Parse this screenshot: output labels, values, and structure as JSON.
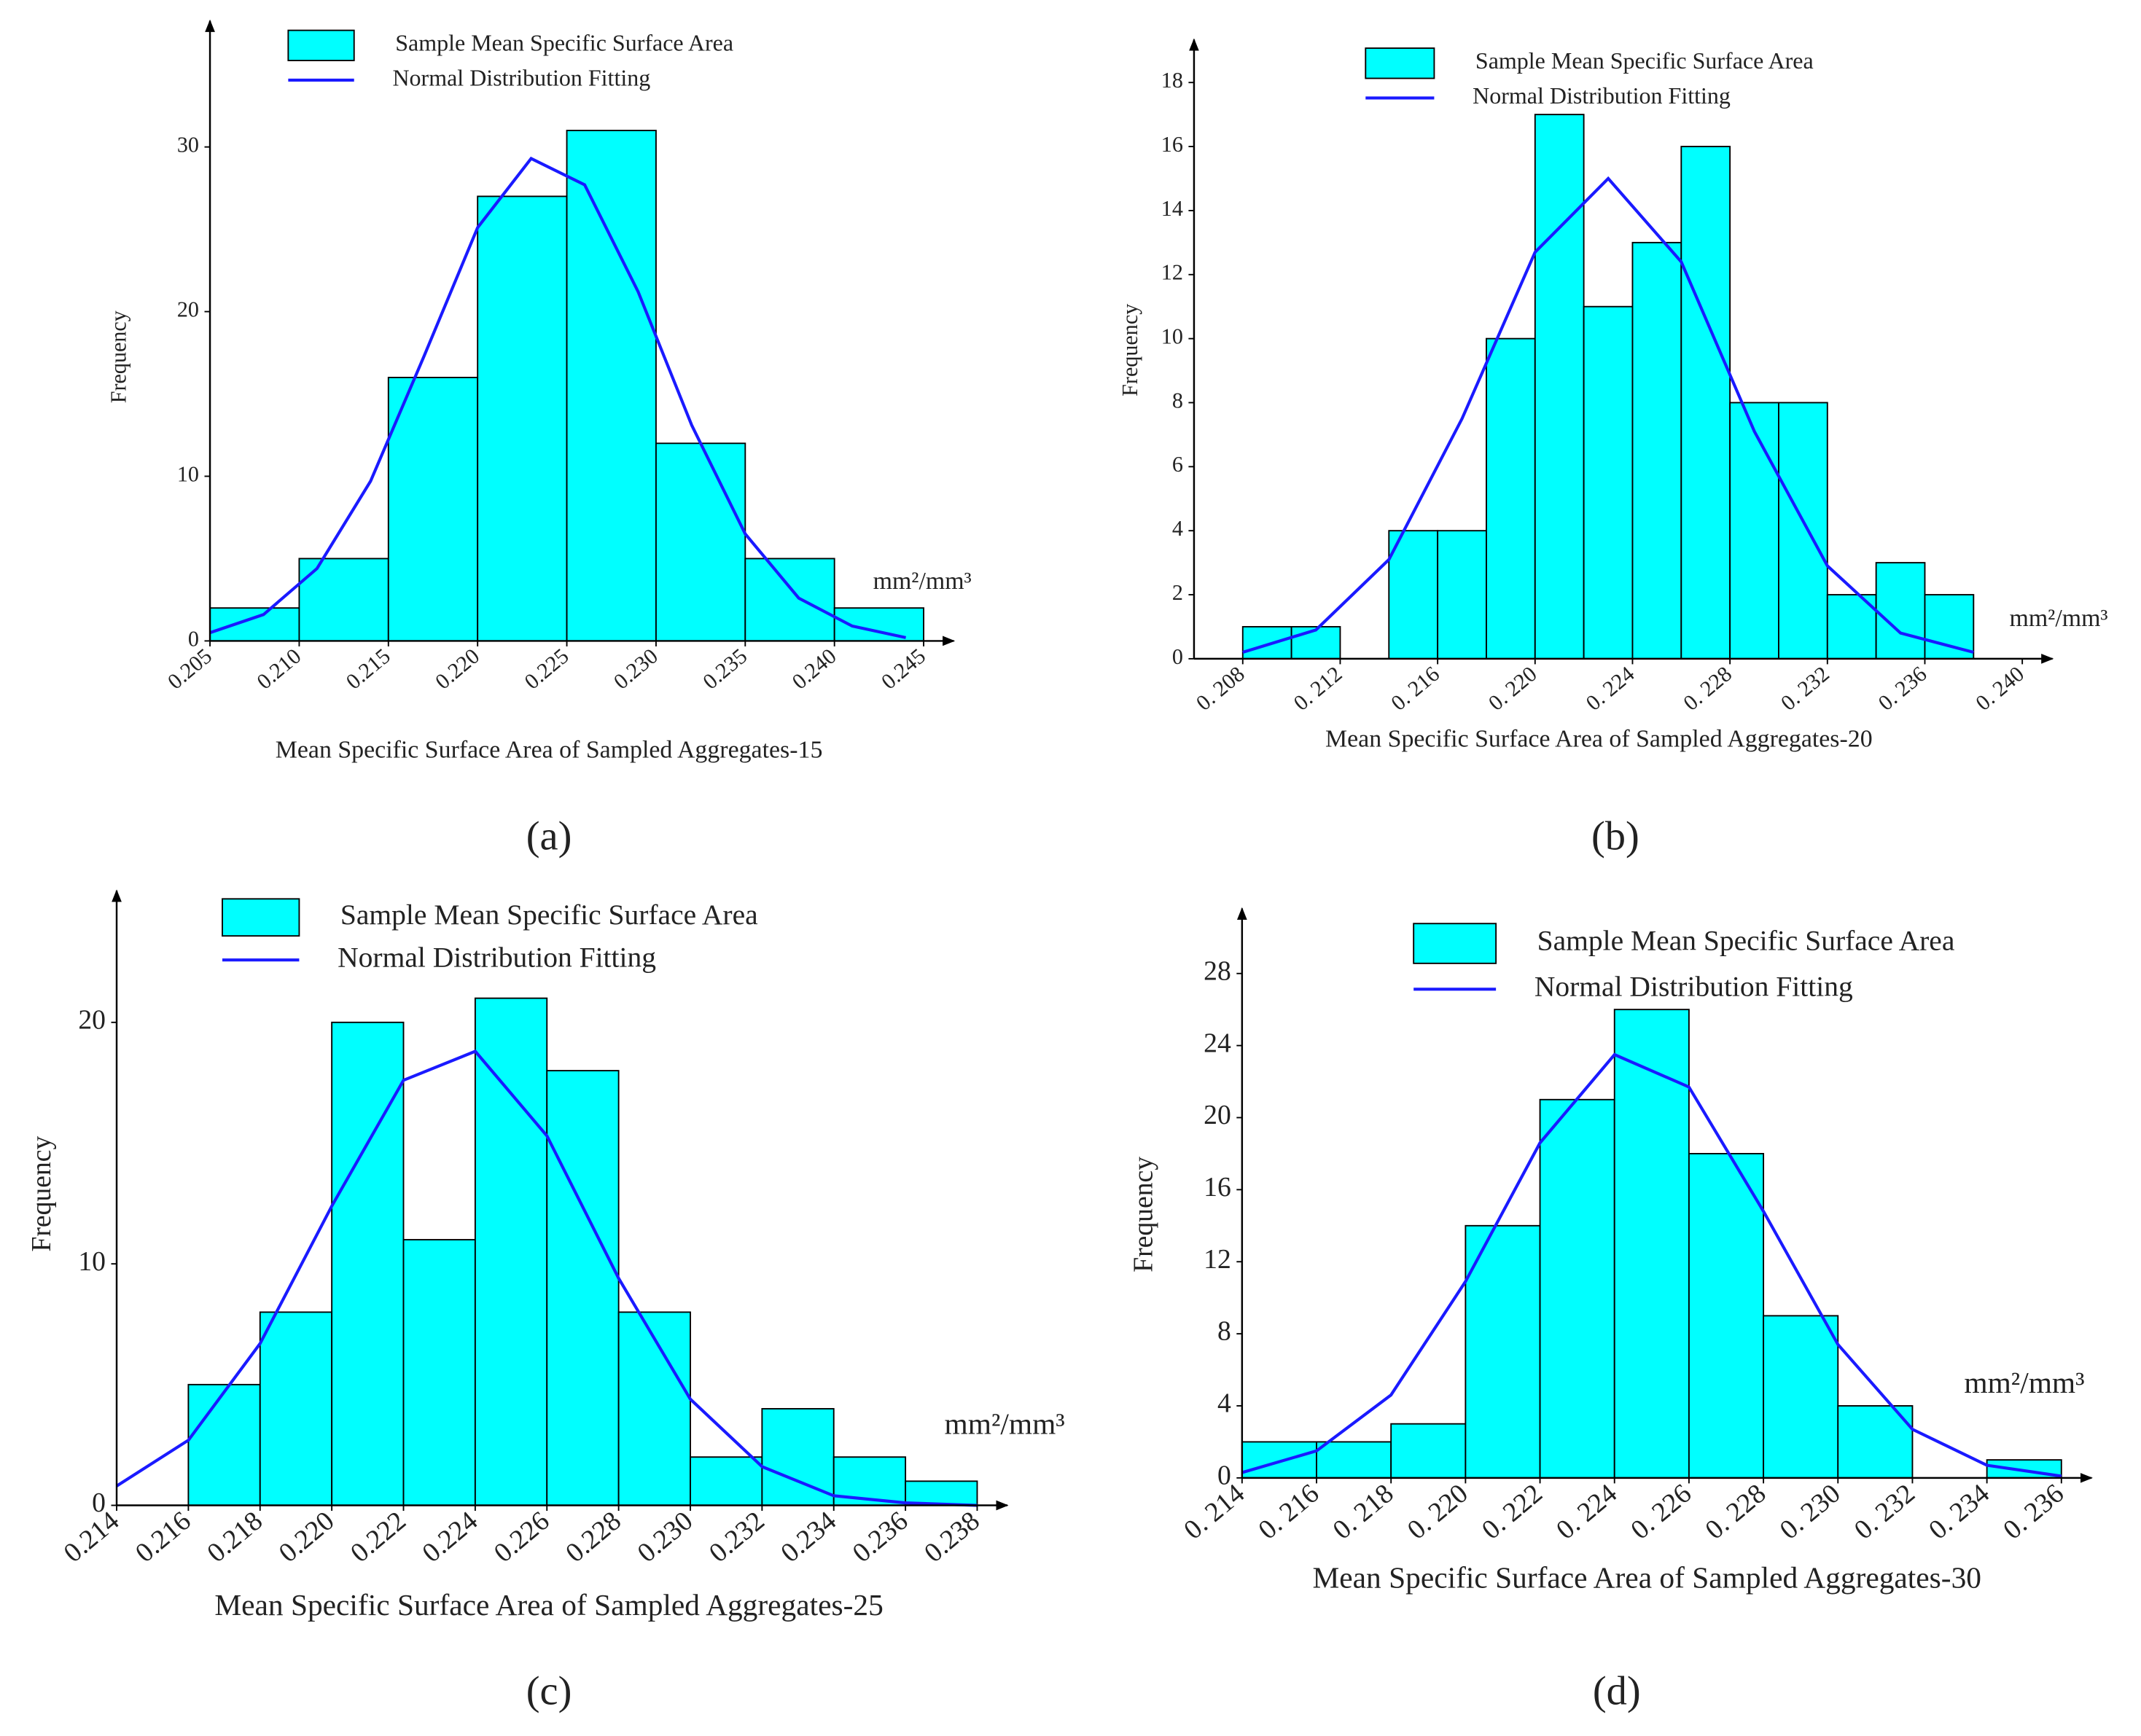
{
  "chart_data": [
    {
      "type": "histogram",
      "panel_label": "(a)",
      "xlabel": "Mean Specific Surface Area of Sampled Aggregates-15",
      "ylabel": "Frequency",
      "unit_label": "mm²/mm³",
      "bins": [
        0.205,
        0.21,
        0.215,
        0.22,
        0.225,
        0.23,
        0.235,
        0.24,
        0.245
      ],
      "series": [
        {
          "name": "Sample Mean Specific Surface Area",
          "color": "#00ffff",
          "values": [
            2,
            5,
            16,
            27,
            31,
            12,
            5,
            2
          ]
        },
        {
          "name": "Normal Distribution Fitting",
          "color": "#1a1aff",
          "x": [
            0.205,
            0.208,
            0.211,
            0.214,
            0.217,
            0.22,
            0.223,
            0.226,
            0.229,
            0.232,
            0.235,
            0.238,
            0.241,
            0.244
          ],
          "values": [
            0.5,
            1.6,
            4.4,
            9.7,
            17.3,
            25.1,
            29.3,
            27.7,
            21.2,
            13.1,
            6.5,
            2.6,
            0.9,
            0.2
          ]
        }
      ],
      "xlim": [
        0.205,
        0.245
      ],
      "ylim": [
        0,
        37
      ],
      "xticks": [
        {
          "value": 0.205,
          "label": "0.205"
        },
        {
          "value": 0.21,
          "label": "0.210"
        },
        {
          "value": 0.215,
          "label": "0.215"
        },
        {
          "value": 0.22,
          "label": "0.220"
        },
        {
          "value": 0.225,
          "label": "0.225"
        },
        {
          "value": 0.23,
          "label": "0.230"
        },
        {
          "value": 0.235,
          "label": "0.235"
        },
        {
          "value": 0.24,
          "label": "0.240"
        },
        {
          "value": 0.245,
          "label": "0.245"
        }
      ],
      "yticks": [
        0,
        10,
        20,
        30
      ]
    },
    {
      "type": "histogram",
      "panel_label": "(b)",
      "xlabel": "Mean Specific Surface Area of Sampled Aggregates-20",
      "ylabel": "Frequency",
      "unit_label": "mm²/mm³",
      "bins": [
        0.208,
        0.21,
        0.212,
        0.214,
        0.216,
        0.218,
        0.22,
        0.222,
        0.224,
        0.226,
        0.228,
        0.23,
        0.232,
        0.234,
        0.236,
        0.238
      ],
      "series": [
        {
          "name": "Sample Mean Specific Surface Area",
          "color": "#00ffff",
          "values": [
            1,
            1,
            0,
            4,
            4,
            10,
            17,
            11,
            13,
            16,
            8,
            8,
            2,
            3,
            2
          ]
        },
        {
          "name": "Normal Distribution Fitting",
          "color": "#1a1aff",
          "x": [
            0.208,
            0.211,
            0.214,
            0.217,
            0.22,
            0.223,
            0.226,
            0.229,
            0.232,
            0.235,
            0.238
          ],
          "values": [
            0.2,
            0.9,
            3.1,
            7.5,
            12.7,
            15,
            12.4,
            7.1,
            2.9,
            0.8,
            0.2
          ]
        }
      ],
      "xlim": [
        0.206,
        0.24
      ],
      "ylim": [
        0,
        19
      ],
      "xticks": [
        {
          "value": 0.208,
          "label": "0. 208"
        },
        {
          "value": 0.212,
          "label": "0. 212"
        },
        {
          "value": 0.216,
          "label": "0. 216"
        },
        {
          "value": 0.22,
          "label": "0. 220"
        },
        {
          "value": 0.224,
          "label": "0. 224"
        },
        {
          "value": 0.228,
          "label": "0. 228"
        },
        {
          "value": 0.232,
          "label": "0. 232"
        },
        {
          "value": 0.236,
          "label": "0. 236"
        },
        {
          "value": 0.24,
          "label": "0. 240"
        }
      ],
      "yticks": [
        0,
        2,
        4,
        6,
        8,
        10,
        12,
        14,
        16,
        18
      ]
    },
    {
      "type": "histogram",
      "panel_label": "(c)",
      "xlabel": "Mean Specific Surface Area of Sampled Aggregates-25",
      "ylabel": "Frequency",
      "unit_label": "mm²/mm³",
      "bins": [
        0.216,
        0.218,
        0.22,
        0.222,
        0.224,
        0.226,
        0.228,
        0.23,
        0.232,
        0.234,
        0.236,
        0.238
      ],
      "series": [
        {
          "name": "Sample Mean Specific Surface Area",
          "color": "#00ffff",
          "values": [
            5,
            8,
            20,
            11,
            21,
            18,
            8,
            2,
            4,
            2,
            1
          ]
        },
        {
          "name": "Normal Distribution Fitting",
          "color": "#1a1aff",
          "x": [
            0.214,
            0.216,
            0.218,
            0.22,
            0.222,
            0.224,
            0.226,
            0.228,
            0.23,
            0.232,
            0.234,
            0.236,
            0.238
          ],
          "values": [
            0.8,
            2.7,
            6.7,
            12.4,
            17.6,
            18.8,
            15.3,
            9.4,
            4.4,
            1.6,
            0.4,
            0.1,
            0
          ]
        }
      ],
      "xlim": [
        0.214,
        0.238
      ],
      "ylim": [
        0,
        25
      ],
      "xticks": [
        {
          "value": 0.214,
          "label": "0.214"
        },
        {
          "value": 0.216,
          "label": "0.216"
        },
        {
          "value": 0.218,
          "label": "0.218"
        },
        {
          "value": 0.22,
          "label": "0.220"
        },
        {
          "value": 0.222,
          "label": "0.222"
        },
        {
          "value": 0.224,
          "label": "0.224"
        },
        {
          "value": 0.226,
          "label": "0.226"
        },
        {
          "value": 0.228,
          "label": "0.228"
        },
        {
          "value": 0.23,
          "label": "0.230"
        },
        {
          "value": 0.232,
          "label": "0.232"
        },
        {
          "value": 0.234,
          "label": "0.234"
        },
        {
          "value": 0.236,
          "label": "0.236"
        },
        {
          "value": 0.238,
          "label": "0.238"
        }
      ],
      "yticks": [
        0,
        10,
        20
      ]
    },
    {
      "type": "histogram",
      "panel_label": "(d)",
      "xlabel": "Mean Specific Surface Area of Sampled Aggregates-30",
      "ylabel": "Frequency",
      "unit_label": "mm²/mm³",
      "bins": [
        0.214,
        0.216,
        0.218,
        0.22,
        0.222,
        0.224,
        0.226,
        0.228,
        0.23,
        0.232,
        0.234,
        0.236
      ],
      "series": [
        {
          "name": "Sample Mean Specific Surface Area",
          "color": "#00ffff",
          "values": [
            2,
            2,
            3,
            14,
            21,
            26,
            18,
            9,
            4,
            0,
            1
          ]
        },
        {
          "name": "Normal Distribution Fitting",
          "color": "#1a1aff",
          "x": [
            0.214,
            0.216,
            0.218,
            0.22,
            0.222,
            0.224,
            0.226,
            0.228,
            0.23,
            0.232,
            0.234,
            0.236
          ],
          "values": [
            0.3,
            1.5,
            4.6,
            10.9,
            18.6,
            23.5,
            21.7,
            14.8,
            7.4,
            2.7,
            0.7,
            0.1
          ]
        }
      ],
      "xlim": [
        0.214,
        0.236
      ],
      "ylim": [
        0,
        31
      ],
      "xticks": [
        {
          "value": 0.214,
          "label": "0. 214"
        },
        {
          "value": 0.216,
          "label": "0. 216"
        },
        {
          "value": 0.218,
          "label": "0. 218"
        },
        {
          "value": 0.22,
          "label": "0. 220"
        },
        {
          "value": 0.222,
          "label": "0. 222"
        },
        {
          "value": 0.224,
          "label": "0. 224"
        },
        {
          "value": 0.226,
          "label": "0. 226"
        },
        {
          "value": 0.228,
          "label": "0. 228"
        },
        {
          "value": 0.23,
          "label": "0. 230"
        },
        {
          "value": 0.232,
          "label": "0. 232"
        },
        {
          "value": 0.234,
          "label": "0. 234"
        },
        {
          "value": 0.236,
          "label": "0. 236"
        }
      ],
      "yticks": [
        0,
        4,
        8,
        12,
        16,
        20,
        24,
        28
      ]
    }
  ]
}
